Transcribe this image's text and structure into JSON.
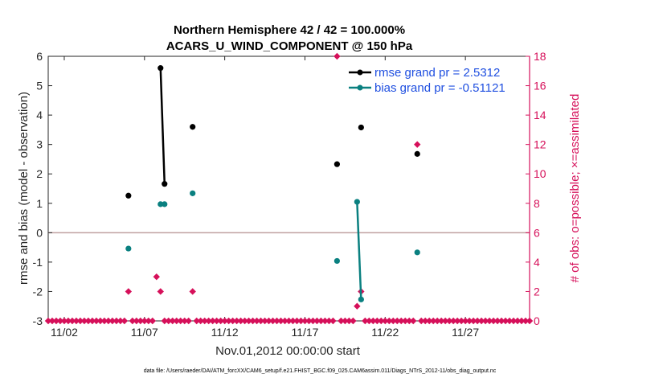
{
  "chart_data": {
    "type": "scatter",
    "title": "Northern Hemisphere 42 / 42 = 100.000%",
    "subtitle": "ACARS_U_WIND_COMPONENT @ 150 hPa",
    "xlabel": "Nov.01,2012 00:00:00 start",
    "ylabel": "rmse and bias (model - observation)",
    "y2label": "# of obs: o=possible; ×=assimilated",
    "xlim": [
      1,
      31
    ],
    "ylim": [
      -3,
      6
    ],
    "y2lim": [
      0,
      18
    ],
    "x_ticks": [
      {
        "value": 2,
        "label": "11/02"
      },
      {
        "value": 7,
        "label": "11/07"
      },
      {
        "value": 12,
        "label": "11/12"
      },
      {
        "value": 17,
        "label": "11/17"
      },
      {
        "value": 22,
        "label": "11/22"
      },
      {
        "value": 27,
        "label": "11/27"
      }
    ],
    "y_ticks": [
      {
        "value": 6,
        "label": "6"
      },
      {
        "value": 5,
        "label": "5"
      },
      {
        "value": 4,
        "label": "4"
      },
      {
        "value": 3,
        "label": "3"
      },
      {
        "value": 2,
        "label": "2"
      },
      {
        "value": 1,
        "label": "1"
      },
      {
        "value": 0,
        "label": "0"
      },
      {
        "value": -1,
        "label": "-1"
      },
      {
        "value": -2,
        "label": "-2"
      },
      {
        "value": -3,
        "label": "-3"
      }
    ],
    "y2_ticks": [
      {
        "value": 18,
        "label": "18"
      },
      {
        "value": 16,
        "label": "16"
      },
      {
        "value": 14,
        "label": "14"
      },
      {
        "value": 12,
        "label": "12"
      },
      {
        "value": 10,
        "label": "10"
      },
      {
        "value": 8,
        "label": "8"
      },
      {
        "value": 6,
        "label": "6"
      },
      {
        "value": 4,
        "label": "4"
      },
      {
        "value": 2,
        "label": "2"
      },
      {
        "value": 0,
        "label": "0"
      }
    ],
    "zero_line": 0,
    "series": [
      {
        "name": "rmse grand pr = 2.5312",
        "color": "#000000",
        "points": [
          [
            6.0,
            1.26
          ],
          [
            8.0,
            5.6
          ],
          [
            8.25,
            1.66
          ],
          [
            10.0,
            3.6
          ],
          [
            19.0,
            2.33
          ],
          [
            20.5,
            3.58
          ],
          [
            24.0,
            2.68
          ]
        ],
        "lines": [
          [
            [
              8.0,
              5.6
            ],
            [
              8.25,
              1.66
            ]
          ]
        ]
      },
      {
        "name": "bias grand pr = -0.51121",
        "color": "#0a8080",
        "points": [
          [
            6.0,
            -0.54
          ],
          [
            8.0,
            0.97
          ],
          [
            8.25,
            0.97
          ],
          [
            10.0,
            1.34
          ],
          [
            19.0,
            -0.96
          ],
          [
            20.25,
            1.05
          ],
          [
            20.5,
            -2.27
          ],
          [
            24.0,
            -0.67
          ]
        ],
        "lines": [
          [
            [
              20.25,
              1.05
            ],
            [
              20.5,
              -2.27
            ]
          ]
        ]
      }
    ],
    "obs_counts": {
      "name": "# of obs",
      "color": "#d6105a",
      "nonzero": [
        [
          6.0,
          2
        ],
        [
          7.75,
          3
        ],
        [
          8.0,
          2
        ],
        [
          10.0,
          2
        ],
        [
          19.0,
          18
        ],
        [
          20.25,
          1
        ],
        [
          20.5,
          2
        ],
        [
          24.0,
          12
        ]
      ],
      "zero_from": 1.0,
      "zero_to": 31.0,
      "zero_step": 0.25
    },
    "footer": "data file: /Users/raeder/DAI/ATM_forcXX/CAM6_setup/f.e21.FHIST_BGC.f09_025.CAM6assim.011/Diags_NTrS_2012-11/obs_diag_output.nc"
  }
}
